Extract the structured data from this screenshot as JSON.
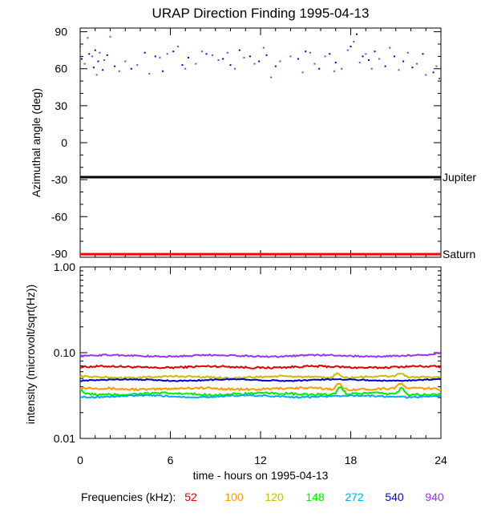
{
  "title": "URAP Direction Finding  1995-04-13",
  "chart_data": [
    {
      "type": "scatter",
      "ylabel": "Azimuthal angle (deg)",
      "ylim": [
        -93,
        93
      ],
      "xlim": [
        0,
        24
      ],
      "yticks": [
        "90",
        "60",
        "30",
        "0",
        "-30",
        "-60",
        "-90"
      ],
      "reference_lines": [
        {
          "label": "Jupiter",
          "y": -28,
          "color": "#000000"
        },
        {
          "label": "Saturn",
          "y": -90.5,
          "color": "#ff0000"
        }
      ],
      "series": [
        {
          "color": "#0000cc",
          "x": [
            0.1,
            0.6,
            0.9,
            1.0,
            1.2,
            1.5,
            1.8,
            2.3,
            3.4,
            4.3,
            5.0,
            5.5,
            6.2,
            6.8,
            7.2,
            8.4,
            9.5,
            10.0,
            10.6,
            11.3,
            11.9,
            12.4,
            13.0,
            14.5,
            15.0,
            15.9,
            16.6,
            17.0,
            18.0,
            18.4,
            18.8,
            19.2,
            19.6,
            20.3,
            20.9,
            21.5,
            22.1,
            22.8,
            23.5
          ],
          "y": [
            68,
            72,
            61,
            75,
            66,
            59,
            71,
            62,
            60,
            73,
            70,
            58,
            74,
            63,
            69,
            72,
            68,
            63,
            75,
            70,
            66,
            71,
            62,
            68,
            74,
            60,
            72,
            65,
            78,
            88,
            70,
            67,
            74,
            62,
            70,
            66,
            61,
            72,
            57
          ]
        },
        {
          "color": "#9933cc",
          "x": [
            0.0,
            0.3,
            0.5,
            0.8,
            1.1,
            1.3,
            1.6,
            2.0,
            2.6,
            3.0,
            3.8,
            4.6,
            5.3,
            5.8,
            6.5,
            7.0,
            7.7,
            8.1,
            8.8,
            9.2,
            9.8,
            10.3,
            10.9,
            11.6,
            12.2,
            12.7,
            13.3,
            14.0,
            14.8,
            15.3,
            15.6,
            16.3,
            16.9,
            17.4,
            17.8,
            18.2,
            18.6,
            19.0,
            19.4,
            19.9,
            20.6,
            21.2,
            21.8,
            22.4,
            23.0,
            23.7,
            23.9
          ],
          "y": [
            78,
            64,
            85,
            70,
            55,
            73,
            67,
            86,
            58,
            66,
            63,
            56,
            69,
            72,
            78,
            60,
            64,
            74,
            71,
            67,
            73,
            60,
            69,
            64,
            77,
            53,
            66,
            70,
            57,
            73,
            64,
            70,
            58,
            60,
            75,
            82,
            65,
            72,
            60,
            68,
            77,
            59,
            73,
            64,
            55,
            62,
            52
          ]
        }
      ]
    },
    {
      "type": "line",
      "ylabel": "intensity (microvolt/sqrt(Hz))",
      "xlabel": "time - hours on 1995-04-13",
      "xlim": [
        0,
        24
      ],
      "xticks": [
        "0",
        "6",
        "12",
        "18",
        "24"
      ],
      "yscale": "log",
      "ylim": [
        0.01,
        1.0
      ],
      "yticks": [
        {
          "value": 1.0,
          "label": "1.00"
        },
        {
          "value": 0.1,
          "label": "0.10"
        },
        {
          "value": 0.01,
          "label": "0.01"
        }
      ],
      "legend_label": "Frequencies (kHz):",
      "series": [
        {
          "name": "52",
          "color": "#dd0000",
          "base": 0.068,
          "noise": 0.025,
          "bumps": []
        },
        {
          "name": "100",
          "color": "#ff9900",
          "base": 0.038,
          "noise": 0.03,
          "bumps": [
            [
              17.2,
              0.15
            ],
            [
              21.3,
              0.12
            ]
          ]
        },
        {
          "name": "120",
          "color": "#ccbb00",
          "base": 0.052,
          "noise": 0.025,
          "bumps": [
            [
              17.1,
              0.12
            ],
            [
              21.3,
              0.1
            ]
          ]
        },
        {
          "name": "148",
          "color": "#00ee00",
          "base": 0.033,
          "noise": 0.03,
          "bumps": [
            [
              0.0,
              0.12
            ],
            [
              17.3,
              0.22
            ],
            [
              21.4,
              0.18
            ]
          ]
        },
        {
          "name": "272",
          "color": "#00aaee",
          "base": 0.031,
          "noise": 0.02,
          "bumps": []
        },
        {
          "name": "540",
          "color": "#0000cc",
          "base": 0.048,
          "noise": 0.015,
          "bumps": []
        },
        {
          "name": "940",
          "color": "#9933ee",
          "base": 0.092,
          "noise": 0.02,
          "bumps": [
            [
              23.8,
              0.06
            ]
          ]
        }
      ]
    }
  ]
}
